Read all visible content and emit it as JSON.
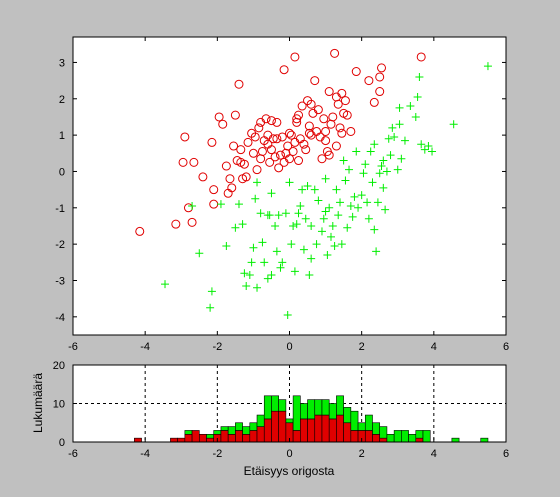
{
  "figure": {
    "background": "#c0c0c0",
    "axes_bg": "#ffffff"
  },
  "chart_data": [
    {
      "type": "scatter",
      "xlim": [
        -6,
        6
      ],
      "ylim": [
        -4.5,
        3.7
      ],
      "xticks": [
        -6,
        -4,
        -2,
        0,
        2,
        4,
        6
      ],
      "yticks": [
        -4,
        -3,
        -2,
        -1,
        0,
        1,
        2,
        3
      ],
      "grid": false,
      "series": [
        {
          "marker": "circle",
          "color": "#e00000",
          "points": [
            [
              -4.15,
              -1.65
            ],
            [
              -3.15,
              -1.45
            ],
            [
              -2.9,
              0.95
            ],
            [
              -2.95,
              0.25
            ],
            [
              -2.65,
              0.25
            ],
            [
              -2.8,
              -1.0
            ],
            [
              -2.7,
              -1.4
            ],
            [
              -2.4,
              -0.15
            ],
            [
              -2.15,
              0.8
            ],
            [
              -2.1,
              -0.5
            ],
            [
              -2.1,
              -0.9
            ],
            [
              -1.95,
              1.5
            ],
            [
              -1.85,
              1.3
            ],
            [
              -1.75,
              0.15
            ],
            [
              -1.65,
              -0.2
            ],
            [
              -1.6,
              -0.45
            ],
            [
              -1.55,
              0.7
            ],
            [
              -1.5,
              1.55
            ],
            [
              -1.45,
              0.3
            ],
            [
              -1.35,
              0.6
            ],
            [
              -1.35,
              0.25
            ],
            [
              -1.3,
              -0.2
            ],
            [
              -1.4,
              2.4
            ],
            [
              -1.2,
              -0.15
            ],
            [
              -1.15,
              0.8
            ],
            [
              -1.05,
              1.05
            ],
            [
              -1.0,
              0.5
            ],
            [
              -0.95,
              0.95
            ],
            [
              -0.85,
              1.2
            ],
            [
              -0.8,
              1.35
            ],
            [
              -0.8,
              0.35
            ],
            [
              -0.75,
              0.55
            ],
            [
              -0.7,
              0.85
            ],
            [
              -0.65,
              1.45
            ],
            [
              -0.6,
              1.0
            ],
            [
              -0.55,
              0.25
            ],
            [
              -0.5,
              0.6
            ],
            [
              -0.45,
              0.9
            ],
            [
              -0.4,
              0.4
            ],
            [
              -0.35,
              1.35
            ],
            [
              -0.3,
              0.1
            ],
            [
              -0.25,
              0.45
            ],
            [
              -0.2,
              0.95
            ],
            [
              -0.15,
              2.8
            ],
            [
              -0.1,
              0.5
            ],
            [
              0.0,
              1.05
            ],
            [
              0.05,
              1.0
            ],
            [
              0.1,
              0.55
            ],
            [
              0.15,
              0.8
            ],
            [
              0.2,
              1.35
            ],
            [
              0.2,
              1.45
            ],
            [
              0.25,
              1.55
            ],
            [
              0.3,
              0.9
            ],
            [
              0.35,
              1.8
            ],
            [
              0.4,
              0.75
            ],
            [
              0.45,
              0.6
            ],
            [
              0.5,
              1.95
            ],
            [
              0.55,
              1.25
            ],
            [
              0.6,
              1.0
            ],
            [
              0.65,
              1.6
            ],
            [
              0.7,
              2.5
            ],
            [
              0.75,
              1.1
            ],
            [
              0.8,
              1.7
            ],
            [
              0.85,
              0.95
            ],
            [
              0.9,
              0.35
            ],
            [
              0.95,
              1.45
            ],
            [
              1.0,
              1.1
            ],
            [
              1.05,
              0.55
            ],
            [
              1.1,
              2.2
            ],
            [
              1.15,
              1.3
            ],
            [
              1.2,
              1.5
            ],
            [
              1.25,
              3.25
            ],
            [
              1.3,
              2.05
            ],
            [
              1.35,
              1.85
            ],
            [
              1.4,
              1.2
            ],
            [
              1.45,
              2.15
            ],
            [
              1.5,
              1.6
            ],
            [
              1.55,
              1.95
            ],
            [
              0.6,
              1.85
            ],
            [
              1.0,
              0.85
            ],
            [
              1.6,
              1.55
            ],
            [
              1.7,
              1.1
            ],
            [
              1.45,
              1.05
            ],
            [
              1.3,
              0.7
            ],
            [
              1.1,
              0.45
            ],
            [
              0.15,
              3.15
            ],
            [
              -0.5,
              1.4
            ],
            [
              -0.35,
              0.9
            ],
            [
              -0.15,
              0.25
            ],
            [
              0.0,
              0.35
            ],
            [
              1.85,
              2.75
            ],
            [
              2.2,
              2.5
            ],
            [
              2.35,
              1.9
            ],
            [
              2.5,
              2.6
            ],
            [
              2.55,
              2.85
            ],
            [
              2.5,
              2.2
            ],
            [
              3.65,
              3.15
            ],
            [
              -0.9,
              0.05
            ],
            [
              -1.7,
              -0.6
            ],
            [
              -1.25,
              0.2
            ],
            [
              0.25,
              0.3
            ],
            [
              0.55,
              1.05
            ],
            [
              -0.6,
              0.75
            ],
            [
              -0.05,
              0.7
            ]
          ]
        },
        {
          "marker": "plus",
          "color": "#00ee00",
          "points": [
            [
              -3.45,
              -3.1
            ],
            [
              -2.7,
              -0.95
            ],
            [
              -2.5,
              -2.25
            ],
            [
              -2.15,
              -3.3
            ],
            [
              -2.2,
              -3.75
            ],
            [
              -1.9,
              -0.9
            ],
            [
              -1.75,
              -2.05
            ],
            [
              -1.5,
              -1.55
            ],
            [
              -1.4,
              -0.9
            ],
            [
              -1.3,
              -1.45
            ],
            [
              -1.25,
              -2.8
            ],
            [
              -1.2,
              -3.15
            ],
            [
              -1.1,
              -2.85
            ],
            [
              -1.05,
              -2.5
            ],
            [
              -1.0,
              -2.1
            ],
            [
              -0.95,
              -0.75
            ],
            [
              -0.9,
              -0.3
            ],
            [
              -0.9,
              -3.2
            ],
            [
              -0.8,
              -1.15
            ],
            [
              -0.75,
              -1.95
            ],
            [
              -0.7,
              -2.5
            ],
            [
              -0.6,
              -1.2
            ],
            [
              -0.5,
              -0.6
            ],
            [
              -0.5,
              -2.85
            ],
            [
              -0.4,
              -1.5
            ],
            [
              -0.35,
              -2.2
            ],
            [
              -0.3,
              -1.2
            ],
            [
              -0.25,
              -2.65
            ],
            [
              -0.2,
              -2.5
            ],
            [
              -0.1,
              -1.15
            ],
            [
              -0.05,
              -3.95
            ],
            [
              0.0,
              -0.3
            ],
            [
              0.05,
              -2.0
            ],
            [
              0.1,
              -1.5
            ],
            [
              0.15,
              -2.75
            ],
            [
              0.2,
              -1.45
            ],
            [
              0.3,
              -0.95
            ],
            [
              0.35,
              -0.5
            ],
            [
              0.4,
              -2.15
            ],
            [
              0.45,
              -1.3
            ],
            [
              0.5,
              -0.4
            ],
            [
              0.55,
              -2.85
            ],
            [
              0.6,
              -1.5
            ],
            [
              0.7,
              -0.5
            ],
            [
              0.75,
              -2.0
            ],
            [
              0.8,
              -0.8
            ],
            [
              0.9,
              -1.65
            ],
            [
              0.95,
              -1.3
            ],
            [
              1.0,
              -0.2
            ],
            [
              1.05,
              -2.3
            ],
            [
              1.1,
              -1.0
            ],
            [
              1.15,
              -1.8
            ],
            [
              1.2,
              -1.5
            ],
            [
              1.25,
              -2.05
            ],
            [
              1.3,
              -0.5
            ],
            [
              1.35,
              -1.2
            ],
            [
              1.4,
              -0.85
            ],
            [
              1.45,
              -2.0
            ],
            [
              1.5,
              0.3
            ],
            [
              1.6,
              -1.55
            ],
            [
              1.65,
              0.05
            ],
            [
              1.7,
              -0.95
            ],
            [
              1.75,
              -1.25
            ],
            [
              1.8,
              -0.7
            ],
            [
              1.85,
              0.55
            ],
            [
              1.9,
              -1.0
            ],
            [
              2.0,
              -0.65
            ],
            [
              2.1,
              0.2
            ],
            [
              2.15,
              -0.85
            ],
            [
              2.2,
              -1.3
            ],
            [
              2.25,
              0.55
            ],
            [
              2.3,
              -0.3
            ],
            [
              2.35,
              -1.6
            ],
            [
              2.4,
              -2.2
            ],
            [
              2.45,
              -0.85
            ],
            [
              2.5,
              -0.05
            ],
            [
              2.55,
              0.15
            ],
            [
              2.6,
              0.3
            ],
            [
              2.65,
              -1.05
            ],
            [
              2.7,
              0.0
            ],
            [
              2.75,
              0.9
            ],
            [
              2.8,
              0.45
            ],
            [
              2.85,
              1.2
            ],
            [
              2.9,
              0.95
            ],
            [
              3.0,
              0.05
            ],
            [
              3.05,
              1.75
            ],
            [
              3.1,
              0.35
            ],
            [
              3.2,
              0.85
            ],
            [
              3.35,
              1.8
            ],
            [
              3.5,
              1.5
            ],
            [
              3.55,
              2.05
            ],
            [
              3.65,
              0.75
            ],
            [
              3.75,
              0.6
            ],
            [
              3.85,
              0.7
            ],
            [
              3.95,
              0.55
            ],
            [
              4.55,
              1.3
            ],
            [
              5.5,
              2.9
            ],
            [
              2.05,
              -0.05
            ],
            [
              1.55,
              -0.25
            ],
            [
              3.05,
              1.3
            ],
            [
              2.35,
              0.75
            ],
            [
              1.0,
              -1.1
            ],
            [
              0.25,
              -1.15
            ],
            [
              -0.55,
              -1.2
            ],
            [
              2.6,
              -0.45
            ],
            [
              3.6,
              2.6
            ],
            [
              -0.6,
              -2.95
            ],
            [
              0.6,
              -2.4
            ]
          ]
        }
      ]
    },
    {
      "type": "bar",
      "stacked": true,
      "xlim": [
        -6,
        6
      ],
      "ylim": [
        0,
        20
      ],
      "xticks": [
        -6,
        -4,
        -2,
        0,
        2,
        4,
        6
      ],
      "yticks": [
        0,
        10,
        20
      ],
      "grid": true,
      "grid_style": "dashed",
      "xlabel": "Etäisyys origosta",
      "ylabel": "Lukumäärä",
      "bin_width": 0.2,
      "categories": [
        -4.2,
        -3.2,
        -3.0,
        -2.8,
        -2.6,
        -2.4,
        -2.2,
        -2.0,
        -1.8,
        -1.6,
        -1.4,
        -1.2,
        -1.0,
        -0.8,
        -0.6,
        -0.4,
        -0.2,
        0.0,
        0.2,
        0.4,
        0.6,
        0.8,
        1.0,
        1.2,
        1.4,
        1.6,
        1.8,
        2.0,
        2.2,
        2.4,
        2.6,
        2.8,
        3.0,
        3.2,
        3.4,
        3.6,
        3.8,
        4.6,
        5.4
      ],
      "series": [
        {
          "color": "#e00000",
          "values": [
            1,
            1,
            1,
            2,
            3,
            2,
            1,
            2,
            3,
            2,
            3,
            2,
            3,
            4,
            6,
            8,
            8,
            5,
            3,
            6,
            6,
            7,
            7,
            6,
            7,
            5,
            3,
            3,
            3,
            2,
            1,
            0,
            0,
            0,
            0,
            1,
            0,
            0,
            0
          ]
        },
        {
          "color": "#00ee00",
          "values": [
            0,
            0,
            0,
            1,
            0,
            0,
            1,
            1,
            1,
            2,
            2,
            2,
            2,
            3,
            6,
            4,
            3,
            1,
            9,
            4,
            5,
            4,
            4,
            4,
            5,
            4,
            5,
            2,
            4,
            3,
            3,
            2,
            3,
            3,
            2,
            2,
            3,
            1,
            1
          ]
        }
      ]
    }
  ]
}
